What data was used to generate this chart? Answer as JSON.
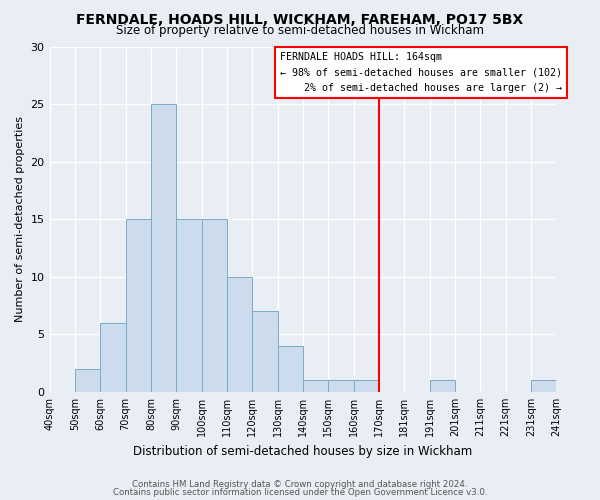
{
  "title": "FERNDALE, HOADS HILL, WICKHAM, FAREHAM, PO17 5BX",
  "subtitle": "Size of property relative to semi-detached houses in Wickham",
  "xlabel": "Distribution of semi-detached houses by size in Wickham",
  "ylabel": "Number of semi-detached properties",
  "bar_color": "#ccdcec",
  "bar_edge_color": "#7aaac8",
  "counts": [
    0,
    2,
    6,
    15,
    25,
    15,
    15,
    10,
    7,
    4,
    1,
    1,
    1,
    0,
    0,
    1,
    0,
    0,
    0,
    1
  ],
  "tick_labels": [
    "40sqm",
    "50sqm",
    "60sqm",
    "70sqm",
    "80sqm",
    "90sqm",
    "100sqm",
    "110sqm",
    "120sqm",
    "130sqm",
    "140sqm",
    "150sqm",
    "160sqm",
    "170sqm",
    "181sqm",
    "191sqm",
    "201sqm",
    "211sqm",
    "221sqm",
    "231sqm",
    "241sqm"
  ],
  "vline_x": 164,
  "vline_color": "red",
  "ylim": [
    0,
    30
  ],
  "yticks": [
    0,
    5,
    10,
    15,
    20,
    25,
    30
  ],
  "annotation_title": "FERNDALE HOADS HILL: 164sqm",
  "annotation_line1": "← 98% of semi-detached houses are smaller (102)",
  "annotation_line2": "2% of semi-detached houses are larger (2) →",
  "footer_line1": "Contains HM Land Registry data © Crown copyright and database right 2024.",
  "footer_line2": "Contains public sector information licensed under the Open Government Licence v3.0.",
  "background_color": "#e8eef4",
  "grid_color": "#ffffff"
}
